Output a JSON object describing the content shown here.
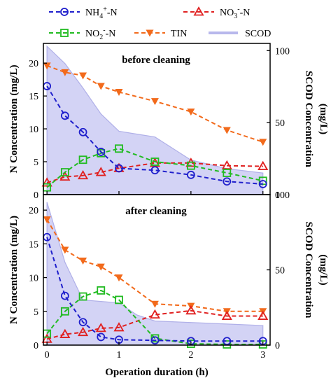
{
  "chart_data": {
    "type": "line",
    "x_label": "Operation duration (h)",
    "x_ticks": [
      0,
      1,
      2,
      3
    ],
    "xlim": [
      -0.05,
      3.1
    ],
    "legend": [
      {
        "key": "nh4",
        "label_parts": [
          {
            "t": "NH"
          },
          {
            "t": "4",
            "sub": true
          },
          {
            "t": "+",
            "sup": true
          },
          {
            "t": "-N"
          }
        ],
        "color": "#1f1fcc",
        "marker": "circle",
        "dash": "6,4"
      },
      {
        "key": "no3",
        "label_parts": [
          {
            "t": "NO"
          },
          {
            "t": "3",
            "sub": true
          },
          {
            "t": "-",
            "sup": true
          },
          {
            "t": "-N"
          }
        ],
        "color": "#e02020",
        "marker": "triangle-up",
        "dash": "6,4"
      },
      {
        "key": "no2",
        "label_parts": [
          {
            "t": "NO"
          },
          {
            "t": "2",
            "sub": true
          },
          {
            "t": "-",
            "sup": true
          },
          {
            "t": "-N"
          }
        ],
        "color": "#22bb22",
        "marker": "square",
        "dash": "6,4"
      },
      {
        "key": "tin",
        "label_parts": [
          {
            "t": "TIN"
          }
        ],
        "color": "#f26a1b",
        "marker": "triangle-down",
        "dash": "6,4"
      },
      {
        "key": "scod",
        "label_parts": [
          {
            "t": "SCOD"
          }
        ],
        "color": "#b8b8ec",
        "marker": "area",
        "dash": ""
      }
    ],
    "panels": [
      {
        "title": "before cleaning",
        "ylabel_left": "N Concentration (mg/L)",
        "ylabel_right_lines": [
          "SCOD Concentration",
          "(mg/L)"
        ],
        "ylim_left": [
          0,
          23
        ],
        "yticks_left": [
          0,
          5,
          10,
          15,
          20
        ],
        "ylim_right": [
          0,
          105
        ],
        "yticks_right": [
          0,
          50,
          100
        ],
        "series": [
          {
            "key": "nh4",
            "x": [
              0,
              0.25,
              0.5,
              0.75,
              1.0,
              1.5,
              2.0,
              2.5,
              3.0
            ],
            "y": [
              16.5,
              12.0,
              9.5,
              6.5,
              4.0,
              3.7,
              3.0,
              2.0,
              1.6
            ]
          },
          {
            "key": "no3",
            "x": [
              0,
              0.25,
              0.5,
              0.75,
              1.0,
              1.5,
              2.0,
              2.5,
              3.0
            ],
            "y": [
              1.8,
              2.7,
              2.9,
              3.4,
              4.0,
              4.8,
              4.8,
              4.4,
              4.3
            ]
          },
          {
            "key": "no2",
            "x": [
              0,
              0.25,
              0.5,
              0.75,
              1.0,
              1.5,
              2.0,
              2.5,
              3.0
            ],
            "y": [
              1.1,
              3.4,
              5.3,
              6.3,
              7.0,
              5.0,
              4.4,
              3.3,
              2.1
            ]
          },
          {
            "key": "tin",
            "x": [
              0,
              0.25,
              0.5,
              0.75,
              1.0,
              1.5,
              2.0,
              2.5,
              3.0
            ],
            "y": [
              19.6,
              18.6,
              18.1,
              16.5,
              15.6,
              14.2,
              12.6,
              9.8,
              8.0
            ]
          },
          {
            "key": "scod",
            "x": [
              0,
              0.25,
              0.5,
              0.75,
              1.0,
              1.25,
              1.5,
              2.0,
              2.5,
              3.0
            ],
            "y": [
              103,
              91,
              74,
              56,
              44,
              42,
              40,
              24,
              18,
              15
            ]
          }
        ]
      },
      {
        "title": "after cleaning",
        "ylabel_left": "N Concentration (mg/L)",
        "ylabel_right_lines": [
          "SCOD Concentration",
          "(mg/L)"
        ],
        "ylim_left": [
          0,
          22.3
        ],
        "yticks_left": [
          0,
          5,
          10,
          15,
          20
        ],
        "ylim_right": [
          0,
          100
        ],
        "yticks_right": [
          0,
          50,
          100
        ],
        "series": [
          {
            "key": "nh4",
            "x": [
              0,
              0.25,
              0.5,
              0.75,
              1.0,
              1.5,
              2.0,
              2.5,
              3.0
            ],
            "y": [
              16.0,
              7.3,
              3.4,
              1.2,
              0.8,
              0.7,
              0.6,
              0.6,
              0.6
            ]
          },
          {
            "key": "no3",
            "x": [
              0,
              0.25,
              0.5,
              0.75,
              1.0,
              1.5,
              2.0,
              2.5,
              3.0
            ],
            "y": [
              0.9,
              1.6,
              1.9,
              2.5,
              2.6,
              4.5,
              5.1,
              4.3,
              4.3
            ]
          },
          {
            "key": "no2",
            "x": [
              0,
              0.25,
              0.5,
              0.75,
              1.0,
              1.5,
              2.0,
              2.5,
              3.0
            ],
            "y": [
              1.7,
              5.0,
              7.2,
              8.1,
              6.7,
              1.0,
              0.2,
              0.1,
              0.1
            ]
          },
          {
            "key": "tin",
            "x": [
              0,
              0.25,
              0.5,
              0.75,
              1.0,
              1.5,
              2.0,
              2.5,
              3.0
            ],
            "y": [
              18.6,
              14.1,
              12.5,
              11.6,
              10.0,
              6.1,
              5.8,
              5.0,
              5.0
            ]
          },
          {
            "key": "scod",
            "x": [
              0,
              0.25,
              0.5,
              0.75,
              1.0,
              1.25,
              1.5,
              2.0,
              2.5,
              3.0
            ],
            "y": [
              95,
              55,
              30,
              29,
              28,
              20,
              16,
              15,
              14,
              13
            ]
          }
        ]
      }
    ]
  }
}
